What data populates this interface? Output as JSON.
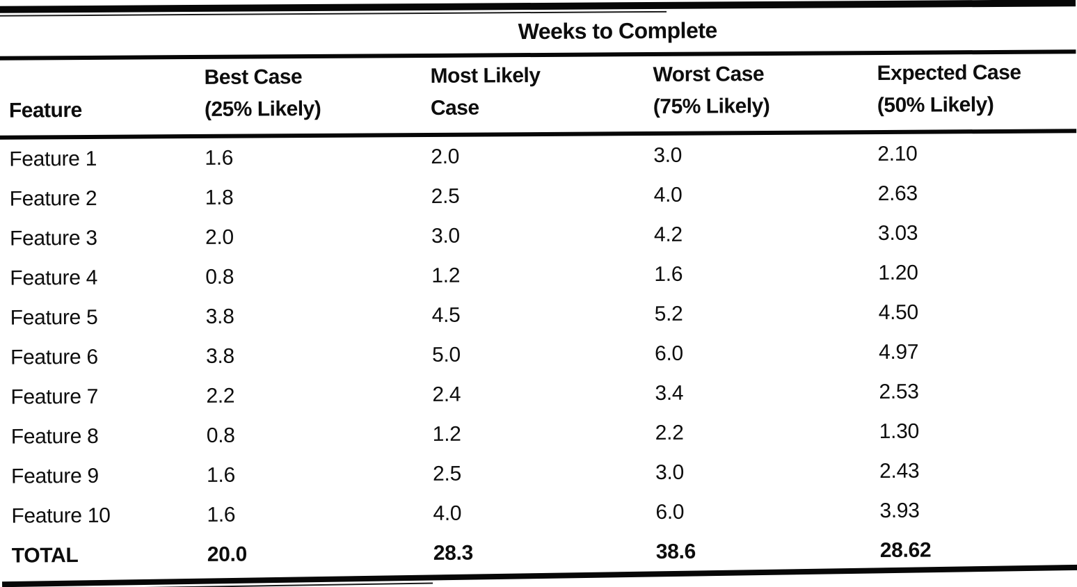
{
  "page": {
    "background_color": "#ffffff",
    "ink_color": "#0d0d0d"
  },
  "table": {
    "title": "Weeks to Complete",
    "feature_header": "Feature",
    "value_headers": [
      {
        "line1": "Best Case",
        "line2": "(25% Likely)"
      },
      {
        "line1": "Most Likely",
        "line2": "Case"
      },
      {
        "line1": "Worst Case",
        "line2": "(75% Likely)"
      },
      {
        "line1": "Expected Case",
        "line2": "(50% Likely)"
      }
    ],
    "rows": [
      {
        "feature": "Feature 1",
        "values": [
          "1.6",
          "2.0",
          "3.0",
          "2.10"
        ]
      },
      {
        "feature": "Feature 2",
        "values": [
          "1.8",
          "2.5",
          "4.0",
          "2.63"
        ]
      },
      {
        "feature": "Feature 3",
        "values": [
          "2.0",
          "3.0",
          "4.2",
          "3.03"
        ]
      },
      {
        "feature": "Feature 4",
        "values": [
          "0.8",
          "1.2",
          "1.6",
          "1.20"
        ]
      },
      {
        "feature": "Feature 5",
        "values": [
          "3.8",
          "4.5",
          "5.2",
          "4.50"
        ]
      },
      {
        "feature": "Feature 6",
        "values": [
          "3.8",
          "5.0",
          "6.0",
          "4.97"
        ]
      },
      {
        "feature": "Feature 7",
        "values": [
          "2.2",
          "2.4",
          "3.4",
          "2.53"
        ]
      },
      {
        "feature": "Feature 8",
        "values": [
          "0.8",
          "1.2",
          "2.2",
          "1.30"
        ]
      },
      {
        "feature": "Feature 9",
        "values": [
          "1.6",
          "2.5",
          "3.0",
          "2.43"
        ]
      },
      {
        "feature": "Feature 10",
        "values": [
          "1.6",
          "4.0",
          "6.0",
          "3.93"
        ]
      }
    ],
    "total_row": {
      "feature": "TOTAL",
      "values": [
        "20.0",
        "28.3",
        "38.6",
        "28.62"
      ]
    }
  }
}
